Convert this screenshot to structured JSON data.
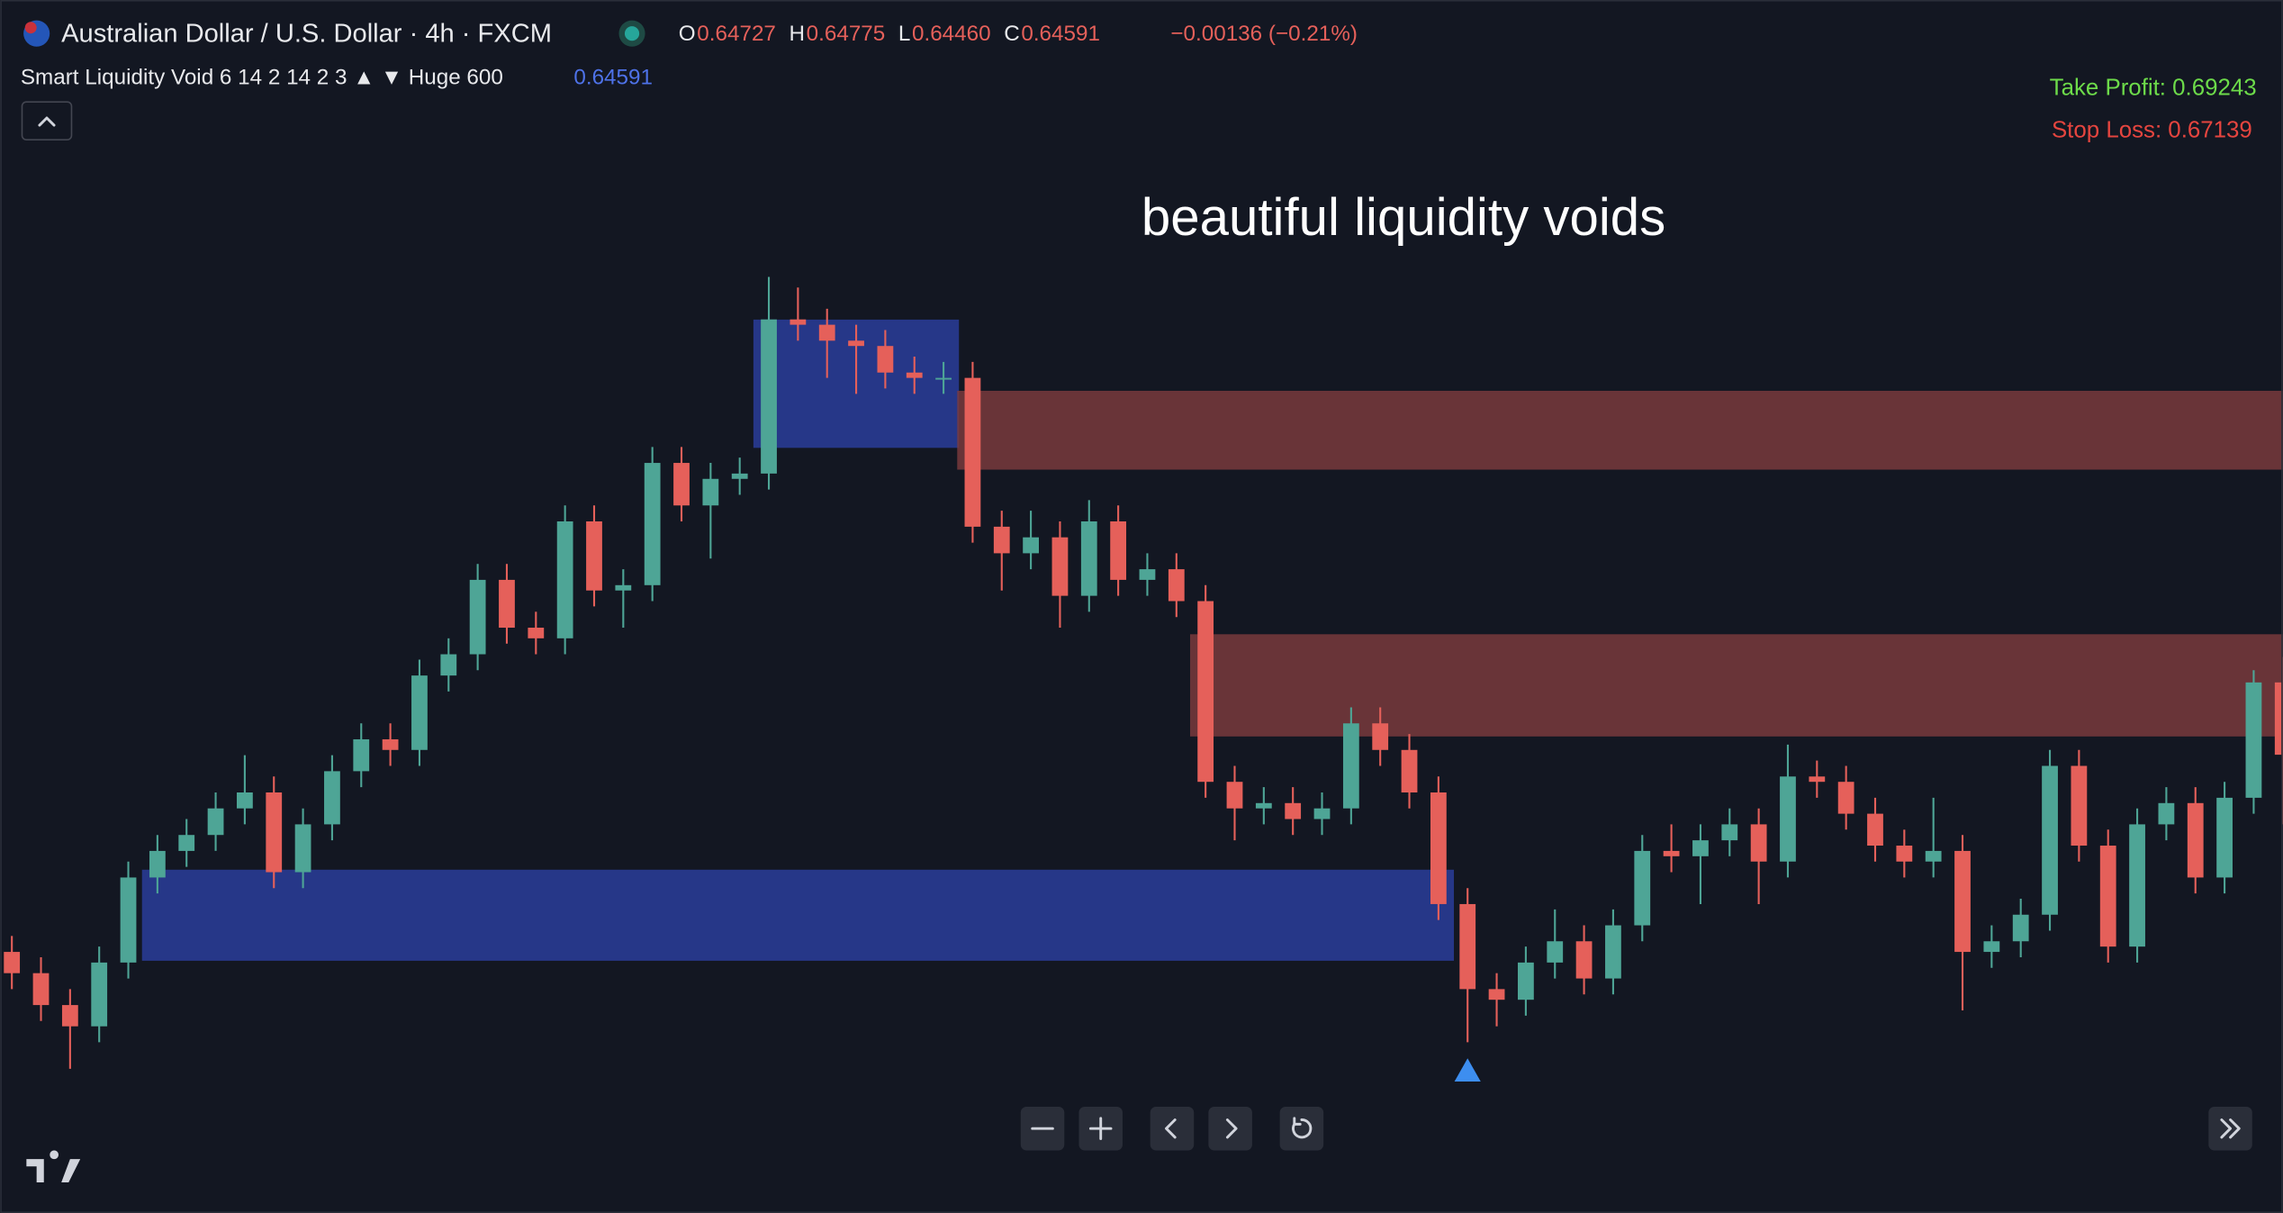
{
  "header": {
    "symbol": "Australian Dollar / U.S. Dollar · 4h · FXCM",
    "ohlc": [
      {
        "label": "O",
        "value": "0.64727"
      },
      {
        "label": "H",
        "value": "0.64775"
      },
      {
        "label": "L",
        "value": "0.64460"
      },
      {
        "label": "C",
        "value": "0.64591"
      }
    ],
    "change": "−0.00136 (−0.21%)",
    "indicator": "Smart Liquidity Void 6 14 2 14 2 3 ▲ ▼ Huge 600",
    "indicator_value": "0.64591",
    "take_profit": "Take Profit: 0.69243",
    "stop_loss": "Stop Loss: 0.67139"
  },
  "chart_data": {
    "type": "candlestick",
    "annotation": "beautiful liquidity voids",
    "ylim": [
      0.64,
      0.656
    ],
    "up_color": "#4ea596",
    "down_color": "#e5605a",
    "candles": [
      [
        0.6422,
        0.6425,
        0.6415,
        0.6418
      ],
      [
        0.6418,
        0.6421,
        0.6409,
        0.6412
      ],
      [
        0.6412,
        0.6415,
        0.64,
        0.6408
      ],
      [
        0.6408,
        0.6423,
        0.6405,
        0.642
      ],
      [
        0.642,
        0.6439,
        0.6417,
        0.6436
      ],
      [
        0.6436,
        0.6444,
        0.6433,
        0.6441
      ],
      [
        0.6441,
        0.6447,
        0.6438,
        0.6444
      ],
      [
        0.6444,
        0.6452,
        0.6441,
        0.6449
      ],
      [
        0.6449,
        0.6459,
        0.6446,
        0.6452
      ],
      [
        0.6452,
        0.6455,
        0.6434,
        0.6437
      ],
      [
        0.6437,
        0.6449,
        0.6434,
        0.6446
      ],
      [
        0.6446,
        0.6459,
        0.6443,
        0.6456
      ],
      [
        0.6456,
        0.6465,
        0.6453,
        0.6462
      ],
      [
        0.6462,
        0.6465,
        0.6457,
        0.646
      ],
      [
        0.646,
        0.6477,
        0.6457,
        0.6474
      ],
      [
        0.6474,
        0.6481,
        0.6471,
        0.6478
      ],
      [
        0.6478,
        0.6495,
        0.6475,
        0.6492
      ],
      [
        0.6492,
        0.6495,
        0.648,
        0.6483
      ],
      [
        0.6483,
        0.6486,
        0.6478,
        0.6481
      ],
      [
        0.6481,
        0.6506,
        0.6478,
        0.6503
      ],
      [
        0.6503,
        0.6506,
        0.6487,
        0.649
      ],
      [
        0.649,
        0.6494,
        0.6483,
        0.6491
      ],
      [
        0.6491,
        0.6517,
        0.6488,
        0.6514
      ],
      [
        0.6514,
        0.6517,
        0.6503,
        0.6506
      ],
      [
        0.6506,
        0.6514,
        0.6496,
        0.6511
      ],
      [
        0.6511,
        0.6515,
        0.6508,
        0.6512
      ],
      [
        0.6512,
        0.6549,
        0.6509,
        0.6541
      ],
      [
        0.6541,
        0.6547,
        0.6537,
        0.654
      ],
      [
        0.654,
        0.6543,
        0.653,
        0.6537
      ],
      [
        0.6537,
        0.654,
        0.6527,
        0.6536
      ],
      [
        0.6536,
        0.6539,
        0.6528,
        0.6531
      ],
      [
        0.6531,
        0.6534,
        0.6527,
        0.653
      ],
      [
        0.653,
        0.6533,
        0.6527,
        0.653
      ],
      [
        0.653,
        0.6533,
        0.6499,
        0.6502
      ],
      [
        0.6502,
        0.6505,
        0.649,
        0.6497
      ],
      [
        0.6497,
        0.6505,
        0.6494,
        0.65
      ],
      [
        0.65,
        0.6503,
        0.6483,
        0.6489
      ],
      [
        0.6489,
        0.6507,
        0.6486,
        0.6503
      ],
      [
        0.6503,
        0.6506,
        0.6489,
        0.6492
      ],
      [
        0.6492,
        0.6497,
        0.6489,
        0.6494
      ],
      [
        0.6494,
        0.6497,
        0.6485,
        0.6488
      ],
      [
        0.6488,
        0.6491,
        0.6451,
        0.6454
      ],
      [
        0.6454,
        0.6457,
        0.6443,
        0.6449
      ],
      [
        0.6449,
        0.6453,
        0.6446,
        0.645
      ],
      [
        0.645,
        0.6453,
        0.6444,
        0.6447
      ],
      [
        0.6447,
        0.6452,
        0.6444,
        0.6449
      ],
      [
        0.6449,
        0.6468,
        0.6446,
        0.6465
      ],
      [
        0.6465,
        0.6468,
        0.6457,
        0.646
      ],
      [
        0.646,
        0.6463,
        0.6449,
        0.6452
      ],
      [
        0.6452,
        0.6455,
        0.6428,
        0.6431
      ],
      [
        0.6431,
        0.6434,
        0.6405,
        0.6415
      ],
      [
        0.6415,
        0.6418,
        0.6408,
        0.6413
      ],
      [
        0.6413,
        0.6423,
        0.641,
        0.642
      ],
      [
        0.642,
        0.643,
        0.6417,
        0.6424
      ],
      [
        0.6424,
        0.6427,
        0.6414,
        0.6417
      ],
      [
        0.6417,
        0.643,
        0.6414,
        0.6427
      ],
      [
        0.6427,
        0.6444,
        0.6424,
        0.6441
      ],
      [
        0.6441,
        0.6446,
        0.6437,
        0.644
      ],
      [
        0.644,
        0.6446,
        0.6431,
        0.6443
      ],
      [
        0.6443,
        0.6449,
        0.644,
        0.6446
      ],
      [
        0.6446,
        0.6449,
        0.6431,
        0.6439
      ],
      [
        0.6439,
        0.6461,
        0.6436,
        0.6455
      ],
      [
        0.6455,
        0.6458,
        0.6451,
        0.6454
      ],
      [
        0.6454,
        0.6457,
        0.6445,
        0.6448
      ],
      [
        0.6448,
        0.6451,
        0.6439,
        0.6442
      ],
      [
        0.6442,
        0.6445,
        0.6436,
        0.6439
      ],
      [
        0.6439,
        0.6451,
        0.6436,
        0.6441
      ],
      [
        0.6441,
        0.6444,
        0.6411,
        0.6422
      ],
      [
        0.6422,
        0.6427,
        0.6419,
        0.6424
      ],
      [
        0.6424,
        0.6432,
        0.6421,
        0.6429
      ],
      [
        0.6429,
        0.646,
        0.6426,
        0.6457
      ],
      [
        0.6457,
        0.646,
        0.6439,
        0.6442
      ],
      [
        0.6442,
        0.6445,
        0.642,
        0.6423
      ],
      [
        0.6423,
        0.6449,
        0.642,
        0.6446
      ],
      [
        0.6446,
        0.6453,
        0.6443,
        0.645
      ],
      [
        0.645,
        0.6453,
        0.6433,
        0.6436
      ],
      [
        0.6436,
        0.6454,
        0.6433,
        0.6451
      ],
      [
        0.6451,
        0.6475,
        0.6448,
        0.64727
      ],
      [
        0.64727,
        0.64775,
        0.6446,
        0.64591
      ]
    ],
    "zones": [
      {
        "from": 26,
        "to": 32,
        "top": 0.65408,
        "bottom": 0.6517,
        "color": "#2b3f9f"
      },
      {
        "from": 33,
        "to": 78,
        "top": 0.65274,
        "bottom": 0.65129,
        "color": "#7c3b3e",
        "extend_right": true
      },
      {
        "from": 41,
        "to": 78,
        "top": 0.64816,
        "bottom": 0.64627,
        "color": "#7c3b3e"
      },
      {
        "from": 5,
        "to": 49,
        "top": 0.64373,
        "bottom": 0.64205,
        "color": "#2b3f9f"
      }
    ],
    "signals": [
      {
        "index": 50,
        "shape": "triangle-up",
        "color": "#3d8ef0"
      }
    ]
  }
}
